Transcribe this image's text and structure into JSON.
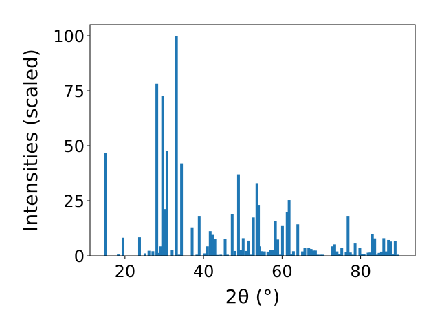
{
  "chart_data": {
    "type": "bar",
    "title": "",
    "xlabel": "2θ (°)",
    "ylabel": "Intensities (scaled)",
    "xlim": [
      11.1,
      93.9
    ],
    "ylim": [
      0,
      105
    ],
    "xticks": [
      20,
      40,
      60,
      80
    ],
    "yticks": [
      0,
      25,
      50,
      75,
      100
    ],
    "bar_width_deg": 0.7,
    "color": "#1f77b4",
    "grid": false,
    "legend": "none",
    "x": [
      15.0,
      18.3,
      19.5,
      23.7,
      25.1,
      26.1,
      27.1,
      28.1,
      28.6,
      29.1,
      29.6,
      30.2,
      30.7,
      32.0,
      33.1,
      33.8,
      34.4,
      37.1,
      38.3,
      38.9,
      40.3,
      41.0,
      41.7,
      42.3,
      42.9,
      43.5,
      44.4,
      45.5,
      46.1,
      47.3,
      48.0,
      48.9,
      49.5,
      50.1,
      50.8,
      51.4,
      52.1,
      52.7,
      53.6,
      54.0,
      54.3,
      54.7,
      55.5,
      56.4,
      57.1,
      57.5,
      58.3,
      58.9,
      59.5,
      60.1,
      61.3,
      61.8,
      62.3,
      62.9,
      64.0,
      65.2,
      65.8,
      66.8,
      67.4,
      68.0,
      68.5,
      69.1,
      69.8,
      70.3,
      72.8,
      73.4,
      74.0,
      74.6,
      75.2,
      76.3,
      76.8,
      77.4,
      77.9,
      78.6,
      79.8,
      80.4,
      80.9,
      81.9,
      82.4,
      83.0,
      83.6,
      84.1,
      84.7,
      85.3,
      85.9,
      86.5,
      87.1,
      87.6,
      88.2,
      88.8,
      89.5
    ],
    "values": [
      46.8,
      0.6,
      8.2,
      8.4,
      1.1,
      2.3,
      2.1,
      78.2,
      1.3,
      4.3,
      72.5,
      21.2,
      47.5,
      2.5,
      100.0,
      0.5,
      42.0,
      12.9,
      0.5,
      18.1,
      1.1,
      4.3,
      11.2,
      9.5,
      7.5,
      0.4,
      0.5,
      7.8,
      0.5,
      19.0,
      2.2,
      37.0,
      2.7,
      8.0,
      2.2,
      6.9,
      0.5,
      17.4,
      33.0,
      23.1,
      4.3,
      2.1,
      2.0,
      1.9,
      2.8,
      2.6,
      15.9,
      7.4,
      0.5,
      13.5,
      19.8,
      25.3,
      0.6,
      2.1,
      14.3,
      2.0,
      3.6,
      3.6,
      3.1,
      2.4,
      2.4,
      0.5,
      0.5,
      0.5,
      4.3,
      5.2,
      2.0,
      0.7,
      3.6,
      1.8,
      18.1,
      1.5,
      0.5,
      5.6,
      3.6,
      0.7,
      0.8,
      1.4,
      1.5,
      9.9,
      7.9,
      0.5,
      1.3,
      1.9,
      8.0,
      2.0,
      7.2,
      6.5,
      0.6,
      6.6,
      0.5
    ]
  }
}
